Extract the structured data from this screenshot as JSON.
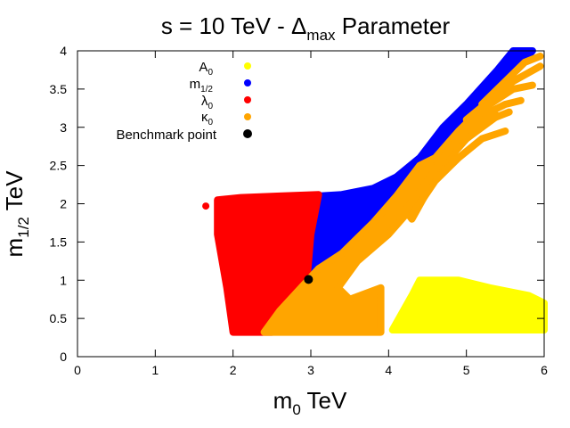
{
  "chart_data": {
    "type": "scatter",
    "title": "s = 10 TeV - Δmax Parameter",
    "title_main": "s = 10 TeV - Δ",
    "title_sub": "max",
    "title_tail": " Parameter",
    "xlabel": "m0 TeV",
    "xlabel_main": "m",
    "xlabel_sub": "0",
    "xlabel_tail": " TeV",
    "ylabel": "m1/2 TeV",
    "ylabel_main": "m",
    "ylabel_sub": "1/2",
    "ylabel_tail": " TeV",
    "xlim": [
      0,
      6
    ],
    "ylim": [
      0,
      4
    ],
    "xticks": [
      "0",
      "1",
      "2",
      "3",
      "4",
      "5",
      "6"
    ],
    "yticks": [
      "0",
      "0.5",
      "1",
      "1.5",
      "2",
      "2.5",
      "3",
      "3.5",
      "4"
    ],
    "legend_position": "top-left",
    "series": [
      {
        "name": "A0",
        "label_main": "A",
        "label_sub": "0",
        "color": "#ffff00",
        "regions": [
          {
            "shape": "polygon",
            "points": [
              [
                4.05,
                0.35
              ],
              [
                4.3,
                0.8
              ],
              [
                4.4,
                1.0
              ],
              [
                4.9,
                1.0
              ],
              [
                5.3,
                0.9
              ],
              [
                5.8,
                0.8
              ],
              [
                6.0,
                0.7
              ],
              [
                6.0,
                0.35
              ]
            ]
          }
        ]
      },
      {
        "name": "m1/2",
        "label_main": "m",
        "label_sub": "1/2",
        "color": "#0000ff",
        "regions": [
          {
            "shape": "polygon",
            "points": [
              [
                2.95,
                1.0
              ],
              [
                3.0,
                1.3
              ],
              [
                3.1,
                2.1
              ],
              [
                3.4,
                2.12
              ],
              [
                3.8,
                2.2
              ],
              [
                4.1,
                2.35
              ],
              [
                4.4,
                2.6
              ],
              [
                4.7,
                3.0
              ],
              [
                5.0,
                3.3
              ],
              [
                5.4,
                3.75
              ],
              [
                5.6,
                4.0
              ],
              [
                5.85,
                4.0
              ],
              [
                5.5,
                3.6
              ],
              [
                5.2,
                3.3
              ],
              [
                4.9,
                2.95
              ],
              [
                4.6,
                2.55
              ],
              [
                4.2,
                2.1
              ],
              [
                3.9,
                1.8
              ],
              [
                3.6,
                1.5
              ],
              [
                3.3,
                1.2
              ]
            ]
          }
        ]
      },
      {
        "name": "λ0",
        "label_main": "λ",
        "label_sub": "0",
        "color": "#ff0000",
        "regions": [
          {
            "shape": "polygon",
            "points": [
              [
                1.8,
                2.05
              ],
              [
                2.1,
                2.08
              ],
              [
                2.6,
                2.1
              ],
              [
                3.1,
                2.12
              ],
              [
                3.0,
                1.6
              ],
              [
                2.95,
                1.0
              ],
              [
                2.6,
                0.6
              ],
              [
                2.5,
                0.32
              ],
              [
                2.0,
                0.32
              ],
              [
                1.92,
                0.9
              ],
              [
                1.8,
                1.6
              ]
            ]
          }
        ],
        "points": [
          [
            1.65,
            1.97
          ]
        ]
      },
      {
        "name": "κ0",
        "label_main": "κ",
        "label_sub": "0",
        "color": "#ffa500",
        "regions": [
          {
            "shape": "polygon",
            "points": [
              [
                2.4,
                0.32
              ],
              [
                2.6,
                0.6
              ],
              [
                3.1,
                1.15
              ],
              [
                3.4,
                1.35
              ],
              [
                3.8,
                1.75
              ],
              [
                4.1,
                2.1
              ],
              [
                4.4,
                2.5
              ],
              [
                4.6,
                2.6
              ],
              [
                4.9,
                2.95
              ],
              [
                5.2,
                3.25
              ],
              [
                5.4,
                3.15
              ],
              [
                5.0,
                2.85
              ],
              [
                4.7,
                2.5
              ],
              [
                4.5,
                2.25
              ],
              [
                4.3,
                1.95
              ],
              [
                4.0,
                1.6
              ],
              [
                3.6,
                1.25
              ],
              [
                3.35,
                0.9
              ],
              [
                3.5,
                0.75
              ],
              [
                3.9,
                0.9
              ],
              [
                3.9,
                0.32
              ]
            ]
          },
          {
            "shape": "polygon",
            "points": [
              [
                4.15,
                2.0
              ],
              [
                4.45,
                2.45
              ],
              [
                4.6,
                2.35
              ],
              [
                4.3,
                1.8
              ]
            ]
          }
        ],
        "arcs": [
          [
            [
              4.3,
              1.85
            ],
            [
              4.6,
              2.3
            ],
            [
              4.9,
              2.6
            ],
            [
              5.2,
              2.85
            ],
            [
              5.5,
              2.95
            ]
          ],
          [
            [
              4.2,
              1.9
            ],
            [
              4.7,
              2.55
            ],
            [
              5.0,
              2.85
            ],
            [
              5.3,
              3.1
            ],
            [
              5.55,
              3.2
            ]
          ],
          [
            [
              4.5,
              2.3
            ],
            [
              4.8,
              2.75
            ],
            [
              5.1,
              3.05
            ],
            [
              5.3,
              3.2
            ],
            [
              5.5,
              3.3
            ],
            [
              5.7,
              3.35
            ]
          ],
          [
            [
              4.7,
              2.6
            ],
            [
              5.0,
              3.0
            ],
            [
              5.3,
              3.3
            ],
            [
              5.6,
              3.5
            ],
            [
              5.85,
              3.55
            ]
          ],
          [
            [
              5.0,
              3.1
            ],
            [
              5.3,
              3.35
            ],
            [
              5.6,
              3.6
            ],
            [
              5.95,
              3.8
            ]
          ],
          [
            [
              5.2,
              3.3
            ],
            [
              5.5,
              3.6
            ],
            [
              5.75,
              3.85
            ],
            [
              5.95,
              3.93
            ]
          ]
        ]
      }
    ],
    "benchmark": {
      "name": "Benchmark point",
      "x": 2.97,
      "y": 1.01,
      "color": "#000000"
    }
  }
}
